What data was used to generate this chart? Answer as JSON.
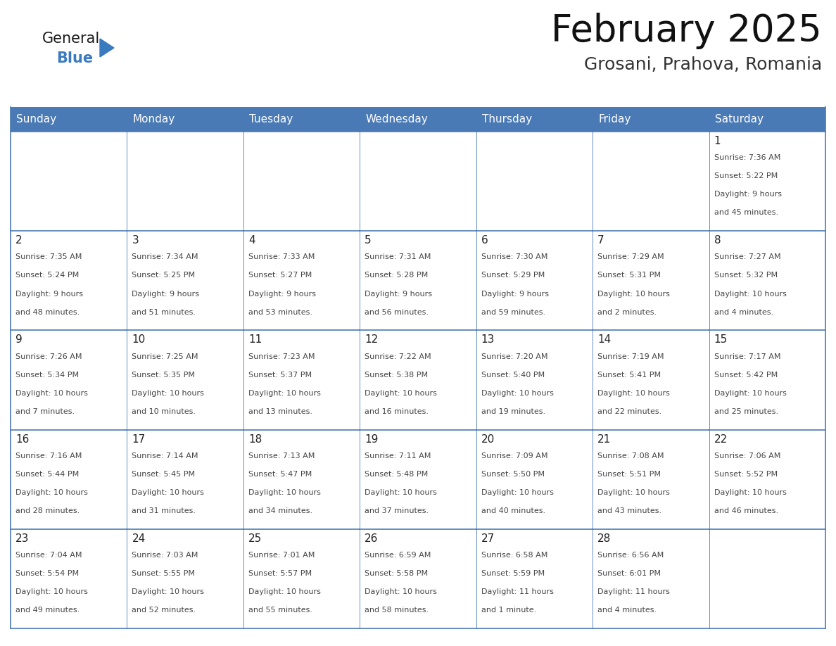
{
  "title": "February 2025",
  "subtitle": "Grosani, Prahova, Romania",
  "days_of_week": [
    "Sunday",
    "Monday",
    "Tuesday",
    "Wednesday",
    "Thursday",
    "Friday",
    "Saturday"
  ],
  "header_bg": "#4a7ab5",
  "header_text": "#FFFFFF",
  "border_color": "#4a7ab5",
  "border_color_row": "#5a8ac0",
  "text_color": "#444444",
  "day_number_color": "#222222",
  "title_color": "#111111",
  "subtitle_color": "#333333",
  "logo_general_color": "#1a1a1a",
  "logo_blue_color": "#3a7abf",
  "cell_bg": "#FFFFFF",
  "calendar_data": [
    [
      null,
      null,
      null,
      null,
      null,
      null,
      {
        "day": 1,
        "sunrise": "7:36 AM",
        "sunset": "5:22 PM",
        "daylight": "9 hours",
        "daylight2": "and 45 minutes."
      }
    ],
    [
      {
        "day": 2,
        "sunrise": "7:35 AM",
        "sunset": "5:24 PM",
        "daylight": "9 hours",
        "daylight2": "and 48 minutes."
      },
      {
        "day": 3,
        "sunrise": "7:34 AM",
        "sunset": "5:25 PM",
        "daylight": "9 hours",
        "daylight2": "and 51 minutes."
      },
      {
        "day": 4,
        "sunrise": "7:33 AM",
        "sunset": "5:27 PM",
        "daylight": "9 hours",
        "daylight2": "and 53 minutes."
      },
      {
        "day": 5,
        "sunrise": "7:31 AM",
        "sunset": "5:28 PM",
        "daylight": "9 hours",
        "daylight2": "and 56 minutes."
      },
      {
        "day": 6,
        "sunrise": "7:30 AM",
        "sunset": "5:29 PM",
        "daylight": "9 hours",
        "daylight2": "and 59 minutes."
      },
      {
        "day": 7,
        "sunrise": "7:29 AM",
        "sunset": "5:31 PM",
        "daylight": "10 hours",
        "daylight2": "and 2 minutes."
      },
      {
        "day": 8,
        "sunrise": "7:27 AM",
        "sunset": "5:32 PM",
        "daylight": "10 hours",
        "daylight2": "and 4 minutes."
      }
    ],
    [
      {
        "day": 9,
        "sunrise": "7:26 AM",
        "sunset": "5:34 PM",
        "daylight": "10 hours",
        "daylight2": "and 7 minutes."
      },
      {
        "day": 10,
        "sunrise": "7:25 AM",
        "sunset": "5:35 PM",
        "daylight": "10 hours",
        "daylight2": "and 10 minutes."
      },
      {
        "day": 11,
        "sunrise": "7:23 AM",
        "sunset": "5:37 PM",
        "daylight": "10 hours",
        "daylight2": "and 13 minutes."
      },
      {
        "day": 12,
        "sunrise": "7:22 AM",
        "sunset": "5:38 PM",
        "daylight": "10 hours",
        "daylight2": "and 16 minutes."
      },
      {
        "day": 13,
        "sunrise": "7:20 AM",
        "sunset": "5:40 PM",
        "daylight": "10 hours",
        "daylight2": "and 19 minutes."
      },
      {
        "day": 14,
        "sunrise": "7:19 AM",
        "sunset": "5:41 PM",
        "daylight": "10 hours",
        "daylight2": "and 22 minutes."
      },
      {
        "day": 15,
        "sunrise": "7:17 AM",
        "sunset": "5:42 PM",
        "daylight": "10 hours",
        "daylight2": "and 25 minutes."
      }
    ],
    [
      {
        "day": 16,
        "sunrise": "7:16 AM",
        "sunset": "5:44 PM",
        "daylight": "10 hours",
        "daylight2": "and 28 minutes."
      },
      {
        "day": 17,
        "sunrise": "7:14 AM",
        "sunset": "5:45 PM",
        "daylight": "10 hours",
        "daylight2": "and 31 minutes."
      },
      {
        "day": 18,
        "sunrise": "7:13 AM",
        "sunset": "5:47 PM",
        "daylight": "10 hours",
        "daylight2": "and 34 minutes."
      },
      {
        "day": 19,
        "sunrise": "7:11 AM",
        "sunset": "5:48 PM",
        "daylight": "10 hours",
        "daylight2": "and 37 minutes."
      },
      {
        "day": 20,
        "sunrise": "7:09 AM",
        "sunset": "5:50 PM",
        "daylight": "10 hours",
        "daylight2": "and 40 minutes."
      },
      {
        "day": 21,
        "sunrise": "7:08 AM",
        "sunset": "5:51 PM",
        "daylight": "10 hours",
        "daylight2": "and 43 minutes."
      },
      {
        "day": 22,
        "sunrise": "7:06 AM",
        "sunset": "5:52 PM",
        "daylight": "10 hours",
        "daylight2": "and 46 minutes."
      }
    ],
    [
      {
        "day": 23,
        "sunrise": "7:04 AM",
        "sunset": "5:54 PM",
        "daylight": "10 hours",
        "daylight2": "and 49 minutes."
      },
      {
        "day": 24,
        "sunrise": "7:03 AM",
        "sunset": "5:55 PM",
        "daylight": "10 hours",
        "daylight2": "and 52 minutes."
      },
      {
        "day": 25,
        "sunrise": "7:01 AM",
        "sunset": "5:57 PM",
        "daylight": "10 hours",
        "daylight2": "and 55 minutes."
      },
      {
        "day": 26,
        "sunrise": "6:59 AM",
        "sunset": "5:58 PM",
        "daylight": "10 hours",
        "daylight2": "and 58 minutes."
      },
      {
        "day": 27,
        "sunrise": "6:58 AM",
        "sunset": "5:59 PM",
        "daylight": "11 hours",
        "daylight2": "and 1 minute."
      },
      {
        "day": 28,
        "sunrise": "6:56 AM",
        "sunset": "6:01 PM",
        "daylight": "11 hours",
        "daylight2": "and 4 minutes."
      },
      null
    ]
  ]
}
